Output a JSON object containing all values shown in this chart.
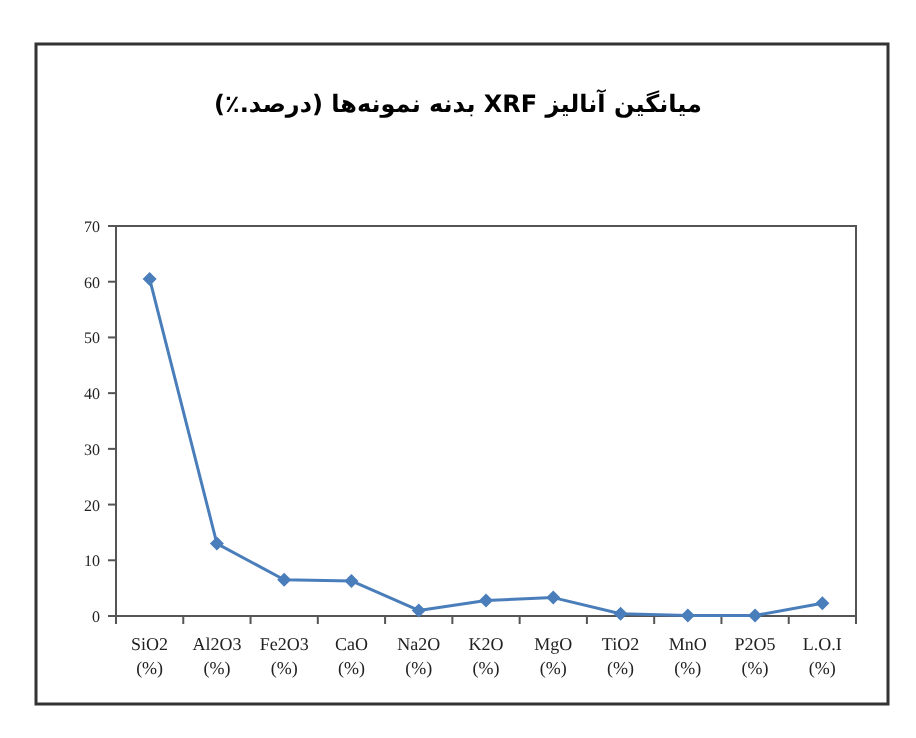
{
  "chart_data": {
    "type": "line",
    "title": "میانگین آنالیز XRF بدنه نمونه‌ها (درصد.٪)",
    "categories": [
      "SiO2\n(%)",
      "Al2O3\n(%)",
      "Fe2O3\n(%)",
      "CaO\n(%)",
      "Na2O\n(%)",
      "K2O\n(%)",
      "MgO\n(%)",
      "TiO2\n(%)",
      "MnO\n(%)",
      "P2O5\n(%)",
      "L.O.I\n(%)"
    ],
    "series": [
      {
        "color": "#4a7ebb",
        "values": [
          60.5,
          13,
          6.5,
          6.3,
          1,
          2.8,
          3.3,
          0.4,
          0.1,
          0.1,
          2.3
        ]
      }
    ],
    "ylim": [
      0,
      70
    ],
    "yticks": [
      0,
      10,
      20,
      30,
      40,
      50,
      60,
      70
    ],
    "grid": false,
    "marker": "diamond",
    "line_style": "solid"
  }
}
